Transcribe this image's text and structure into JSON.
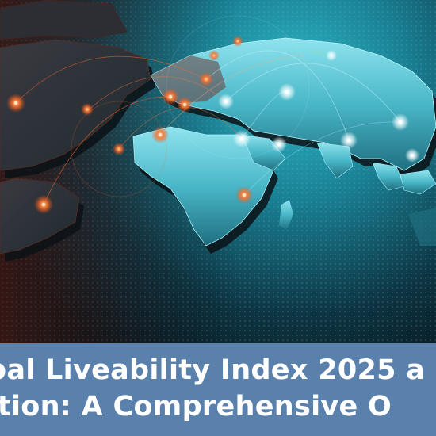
{
  "banner": {
    "line1": "bal Liveability Index 2025 a",
    "line2": "ation: A Comprehensive O"
  },
  "colors": {
    "banner": "#5a80ac",
    "headline": "#ffffff",
    "map_cyan": "#2fb9c9",
    "map_orange": "#ff6a2a",
    "background": "#0a1820"
  }
}
